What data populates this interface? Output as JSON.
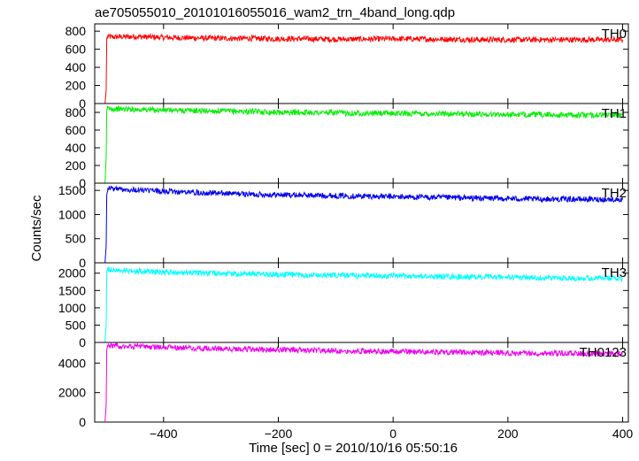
{
  "title": "ae705055010_20101016055016_wam2_trn_4band_long.qdp",
  "chart_data": {
    "type": "line",
    "title": "ae705055010_20101016055016_wam2_trn_4band_long.qdp",
    "xlabel": "Time [sec] 0 = 2010/10/16 05:50:16",
    "ylabel": "Counts/sec",
    "xlim": [
      -520,
      410
    ],
    "x_ticks": [
      -400,
      -200,
      0,
      200,
      400
    ],
    "x_tick_labels": [
      "−400",
      "−200",
      "0",
      "200",
      "400"
    ],
    "grid": false,
    "panels": [
      {
        "label": "TH0",
        "color": "#ff0000",
        "ylim": [
          0,
          880
        ],
        "y_ticks": [
          0,
          200,
          400,
          600,
          800
        ],
        "y_tick_labels": [
          "0",
          "200",
          "400",
          "600",
          "800"
        ],
        "x": [
          -502,
          -500,
          -499,
          -497,
          -490,
          -450,
          -400,
          -350,
          -300,
          -250,
          -200,
          -150,
          -100,
          -50,
          0,
          50,
          100,
          150,
          200,
          250,
          300,
          350,
          400
        ],
        "values": [
          0,
          150,
          720,
          740,
          735,
          740,
          730,
          725,
          720,
          720,
          715,
          715,
          710,
          712,
          715,
          712,
          710,
          705,
          705,
          705,
          705,
          705,
          705
        ]
      },
      {
        "label": "TH1",
        "color": "#00ee00",
        "ylim": [
          0,
          900
        ],
        "y_ticks": [
          0,
          200,
          400,
          600,
          800
        ],
        "y_tick_labels": [
          "0",
          "200",
          "400",
          "600",
          "800"
        ],
        "x": [
          -502,
          -500,
          -499,
          -497,
          -490,
          -450,
          -400,
          -350,
          -300,
          -250,
          -200,
          -150,
          -100,
          -50,
          0,
          50,
          100,
          150,
          200,
          250,
          300,
          350,
          400
        ],
        "values": [
          0,
          300,
          830,
          845,
          840,
          835,
          825,
          820,
          815,
          810,
          800,
          800,
          795,
          790,
          790,
          785,
          785,
          780,
          775,
          775,
          770,
          770,
          770
        ]
      },
      {
        "label": "TH2",
        "color": "#0000ee",
        "ylim": [
          0,
          1650
        ],
        "y_ticks": [
          0,
          500,
          1000,
          1500
        ],
        "y_tick_labels": [
          "0",
          "500",
          "1000",
          "1500"
        ],
        "x": [
          -502,
          -500,
          -499,
          -497,
          -490,
          -450,
          -400,
          -350,
          -300,
          -250,
          -200,
          -150,
          -100,
          -50,
          0,
          50,
          100,
          150,
          200,
          250,
          300,
          350,
          400
        ],
        "values": [
          0,
          350,
          1400,
          1560,
          1540,
          1510,
          1480,
          1460,
          1440,
          1420,
          1410,
          1400,
          1390,
          1380,
          1370,
          1360,
          1350,
          1340,
          1330,
          1320,
          1320,
          1315,
          1310
        ]
      },
      {
        "label": "TH3",
        "color": "#00ffff",
        "ylim": [
          0,
          2300
        ],
        "y_ticks": [
          0,
          500,
          1000,
          1500,
          2000
        ],
        "y_tick_labels": [
          "0",
          "500",
          "1000",
          "1500",
          "2000"
        ],
        "x": [
          -502,
          -500,
          -499,
          -497,
          -490,
          -450,
          -400,
          -350,
          -300,
          -250,
          -200,
          -150,
          -100,
          -50,
          0,
          50,
          100,
          150,
          200,
          250,
          300,
          350,
          400
        ],
        "values": [
          0,
          500,
          2050,
          2120,
          2090,
          2060,
          2030,
          2010,
          1990,
          1980,
          1960,
          1950,
          1940,
          1930,
          1920,
          1910,
          1900,
          1890,
          1880,
          1870,
          1860,
          1860,
          1850
        ]
      },
      {
        "label": "TH0123",
        "color": "#ee00ee",
        "ylim": [
          0,
          5400
        ],
        "y_ticks": [
          0,
          2000,
          4000
        ],
        "y_tick_labels": [
          "0",
          "2000",
          "4000"
        ],
        "x": [
          -502,
          -500,
          -499,
          -497,
          -490,
          -450,
          -400,
          -350,
          -300,
          -250,
          -200,
          -150,
          -100,
          -50,
          0,
          50,
          100,
          150,
          200,
          250,
          300,
          350,
          400
        ],
        "values": [
          0,
          1200,
          4900,
          5200,
          5180,
          5130,
          5060,
          5010,
          4970,
          4940,
          4900,
          4870,
          4840,
          4810,
          4780,
          4760,
          4740,
          4710,
          4690,
          4670,
          4660,
          4650,
          4640
        ]
      }
    ]
  }
}
